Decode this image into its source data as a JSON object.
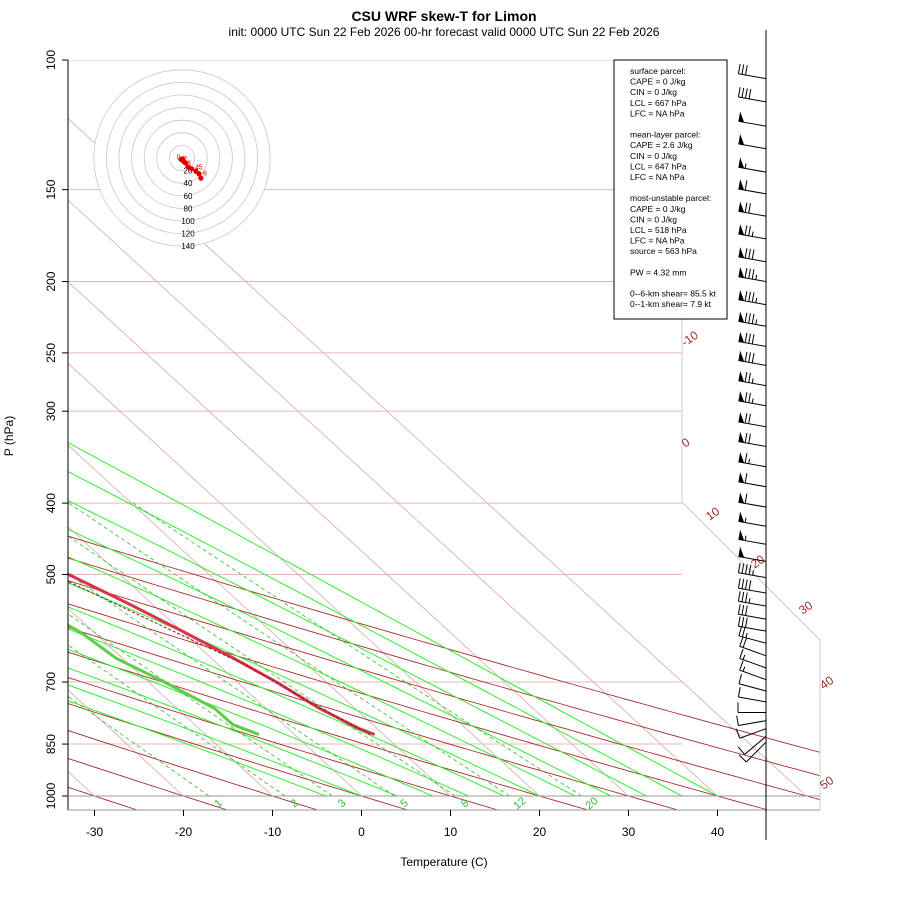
{
  "header": {
    "title": "CSU WRF skew-T for Limon",
    "subtitle": "init: 0000 UTC Sun 22 Feb 2026     00-hr forecast valid 0000 UTC Sun 22 Feb 2026"
  },
  "chart_data": {
    "type": "skew-t",
    "xlabel": "Temperature (C)",
    "ylabel": "P (hPa)",
    "pressure_ticks": [
      100,
      150,
      200,
      250,
      300,
      400,
      500,
      700,
      850,
      1000
    ],
    "temperature_ticks": [
      -30,
      -20,
      -10,
      0,
      10,
      20,
      30,
      40
    ],
    "dry_adiabat_labels": [
      "-10",
      "0",
      "10",
      "20",
      "30",
      "40",
      "50"
    ],
    "mixing_ratio_labels": [
      "1",
      "2",
      "3",
      "5",
      "8",
      "12",
      "20"
    ],
    "temperature_profile": [
      {
        "p": 825,
        "t": 9.0
      },
      {
        "p": 810,
        "t": 8.0
      },
      {
        "p": 790,
        "t": 7.2
      },
      {
        "p": 760,
        "t": 6.0
      },
      {
        "p": 700,
        "t": 4.4
      },
      {
        "p": 650,
        "t": 2.5
      },
      {
        "p": 600,
        "t": 0.2
      },
      {
        "p": 550,
        "t": -2.5
      },
      {
        "p": 500,
        "t": -5.8
      },
      {
        "p": 450,
        "t": -8.8
      },
      {
        "p": 400,
        "t": -12.5
      },
      {
        "p": 350,
        "t": -16.0
      },
      {
        "p": 300,
        "t": -20.5
      },
      {
        "p": 250,
        "t": -27.0
      },
      {
        "p": 220,
        "t": -30.5
      },
      {
        "p": 200,
        "t": -32.5
      },
      {
        "p": 170,
        "t": -34.5
      },
      {
        "p": 150,
        "t": -36.0
      },
      {
        "p": 120,
        "t": -40.5
      },
      {
        "p": 110,
        "t": -42.5
      }
    ],
    "dewpoint_profile": [
      {
        "p": 825,
        "t": -4.0
      },
      {
        "p": 800,
        "t": -5.7
      },
      {
        "p": 760,
        "t": -5.8
      },
      {
        "p": 700,
        "t": -8.2
      },
      {
        "p": 650,
        "t": -10.7
      },
      {
        "p": 600,
        "t": -11.5
      },
      {
        "p": 550,
        "t": -13.6
      },
      {
        "p": 500,
        "t": -16.5
      },
      {
        "p": 450,
        "t": -20.0
      },
      {
        "p": 400,
        "t": -27.0
      },
      {
        "p": 380,
        "t": -32.0
      },
      {
        "p": 350,
        "t": -45.0
      },
      {
        "p": 320,
        "t": -45.0
      },
      {
        "p": 300,
        "t": -42.0
      },
      {
        "p": 250,
        "t": -47.0
      },
      {
        "p": 200,
        "t": -55.0
      },
      {
        "p": 170,
        "t": -57.0
      }
    ],
    "parcel_profile": [
      {
        "p": 825,
        "t": 8.5
      },
      {
        "p": 750,
        "t": 5.8
      },
      {
        "p": 667,
        "t": 3.2
      },
      {
        "p": 600,
        "t": -0.8
      },
      {
        "p": 550,
        "t": -4.0
      },
      {
        "p": 500,
        "t": -7.5
      }
    ],
    "wind_barbs": [
      {
        "p": 845,
        "dir": 225,
        "spd": 10
      },
      {
        "p": 830,
        "dir": 230,
        "spd": 10
      },
      {
        "p": 810,
        "dir": 250,
        "spd": 10
      },
      {
        "p": 790,
        "dir": 260,
        "spd": 10
      },
      {
        "p": 770,
        "dir": 270,
        "spd": 10
      },
      {
        "p": 745,
        "dir": 280,
        "spd": 10
      },
      {
        "p": 720,
        "dir": 285,
        "spd": 10
      },
      {
        "p": 695,
        "dir": 290,
        "spd": 15
      },
      {
        "p": 670,
        "dir": 290,
        "spd": 15
      },
      {
        "p": 645,
        "dir": 290,
        "spd": 20
      },
      {
        "p": 620,
        "dir": 285,
        "spd": 25
      },
      {
        "p": 597,
        "dir": 280,
        "spd": 30
      },
      {
        "p": 575,
        "dir": 280,
        "spd": 30
      },
      {
        "p": 552,
        "dir": 280,
        "spd": 35
      },
      {
        "p": 530,
        "dir": 280,
        "spd": 40
      },
      {
        "p": 505,
        "dir": 280,
        "spd": 45
      },
      {
        "p": 480,
        "dir": 280,
        "spd": 50
      },
      {
        "p": 455,
        "dir": 280,
        "spd": 55
      },
      {
        "p": 430,
        "dir": 280,
        "spd": 55
      },
      {
        "p": 405,
        "dir": 280,
        "spd": 60
      },
      {
        "p": 380,
        "dir": 280,
        "spd": 60
      },
      {
        "p": 357,
        "dir": 280,
        "spd": 65
      },
      {
        "p": 335,
        "dir": 280,
        "spd": 70
      },
      {
        "p": 315,
        "dir": 280,
        "spd": 70
      },
      {
        "p": 295,
        "dir": 280,
        "spd": 75
      },
      {
        "p": 277,
        "dir": 280,
        "spd": 75
      },
      {
        "p": 260,
        "dir": 280,
        "spd": 80
      },
      {
        "p": 245,
        "dir": 280,
        "spd": 80
      },
      {
        "p": 230,
        "dir": 280,
        "spd": 85
      },
      {
        "p": 215,
        "dir": 280,
        "spd": 85
      },
      {
        "p": 200,
        "dir": 280,
        "spd": 85
      },
      {
        "p": 188,
        "dir": 280,
        "spd": 80
      },
      {
        "p": 175,
        "dir": 280,
        "spd": 75
      },
      {
        "p": 163,
        "dir": 280,
        "spd": 70
      },
      {
        "p": 152,
        "dir": 280,
        "spd": 60
      },
      {
        "p": 142,
        "dir": 280,
        "spd": 55
      },
      {
        "p": 132,
        "dir": 280,
        "spd": 50
      },
      {
        "p": 123,
        "dir": 280,
        "spd": 50
      },
      {
        "p": 114,
        "dir": 280,
        "spd": 40
      },
      {
        "p": 106,
        "dir": 280,
        "spd": 30
      }
    ],
    "hodograph": {
      "ring_labels": [
        "20",
        "40",
        "60",
        "80",
        "100",
        "120",
        "140"
      ],
      "points": [
        {
          "u": -1.5,
          "v": -2.0,
          "label": "0"
        },
        {
          "u": 1.0,
          "v": -2.0,
          "label": ""
        },
        {
          "u": 3.0,
          "v": -6.0,
          "label": "1"
        },
        {
          "u": 6.0,
          "v": -8.0,
          "label": "2"
        },
        {
          "u": 9.5,
          "v": -14.0,
          "label": "3"
        },
        {
          "u": 15.0,
          "v": -17.0,
          "label": ""
        },
        {
          "u": 22.0,
          "v": -21.0,
          "label": "4"
        },
        {
          "u": 27.0,
          "v": -25.0,
          "label": "5"
        },
        {
          "u": 30.0,
          "v": -32.0,
          "label": "6"
        }
      ],
      "km_labels": [
        {
          "text": "0",
          "u": -5.5,
          "v": -2.0
        },
        {
          "text": "1",
          "u": 2.0,
          "v": -4.5
        },
        {
          "text": "2",
          "u": 5.0,
          "v": -5.0
        },
        {
          "text": "3",
          "u": 11.0,
          "v": -12.0
        },
        {
          "text": "4",
          "u": 24.0,
          "v": -18.5
        },
        {
          "text": "5",
          "u": 29.5,
          "v": -18.5
        },
        {
          "text": "6",
          "u": 36.5,
          "v": -28.0
        }
      ]
    },
    "info_box": [
      "surface parcel:",
      "CAPE = 0 J/kg",
      "CIN = 0 J/kg",
      "LCL = 667 hPa",
      "LFC = NA hPa",
      "",
      "mean-layer parcel:",
      "CAPE = 2.6 J/kg",
      "CIN = 0 J/kg",
      "LCL = 647 hPa",
      "LFC = NA hPa",
      "",
      "most-unstable parcel:",
      "CAPE = 0 J/kg",
      "CIN = 0 J/kg",
      "LCL = 518 hPa",
      "LFC = NA hPa",
      "source = 563 hPa",
      "",
      "PW =  4.32 mm",
      "",
      "0--6-km shear= 85.5 kt",
      "0--1-km shear= 7.9 kt"
    ]
  },
  "colors": {
    "temperature": "#d9324a",
    "dewpoint": "#5fcc4a",
    "dry_adiabat": "#a52a2a",
    "mixing_ratio": "#2fbf2f",
    "moist_adiabat": "#33ee33",
    "isotherm": "#d8a8a8",
    "isobar": "#e8b8b8",
    "hodograph_trace": "#e00000"
  }
}
